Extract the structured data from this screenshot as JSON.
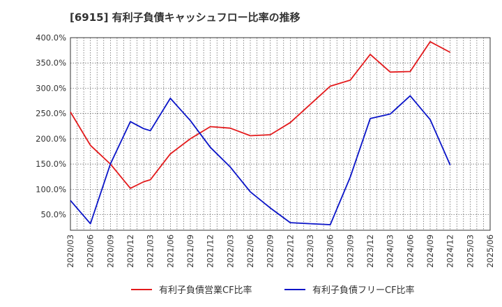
{
  "chart_data": {
    "type": "line",
    "title": "[6915]  有利子負債キャッシュフロー比率の推移",
    "categories": [
      "2020/03",
      "2020/06",
      "2020/09",
      "2020/12",
      "2021/03",
      "2021/06",
      "2021/09",
      "2021/12",
      "2022/03",
      "2022/06",
      "2022/09",
      "2022/12",
      "2023/03",
      "2023/06",
      "2023/09",
      "2023/12",
      "2024/03",
      "2024/06",
      "2024/09",
      "2024/12",
      "2025/03",
      "2025/06"
    ],
    "x": [
      "2020/03",
      "2020/04",
      "2020/05",
      "2020/06",
      "2020/07",
      "2020/08",
      "2020/09",
      "2020/10",
      "2020/11",
      "2020/12",
      "2021/01",
      "2021/02",
      "2021/03",
      "2021/04",
      "2021/05",
      "2021/06",
      "2021/07",
      "2021/08",
      "2021/09",
      "2021/10",
      "2021/11",
      "2021/12",
      "2022/01",
      "2022/02",
      "2022/03",
      "2022/04",
      "2022/05",
      "2022/06",
      "2022/07",
      "2022/08",
      "2022/09",
      "2022/10",
      "2022/11",
      "2022/12",
      "2023/01",
      "2023/02",
      "2023/03",
      "2023/04",
      "2023/05",
      "2023/06",
      "2023/07",
      "2023/08",
      "2023/09",
      "2023/10",
      "2023/11",
      "2023/12",
      "2024/01",
      "2024/02",
      "2024/03",
      "2024/04",
      "2024/05",
      "2024/06",
      "2024/07",
      "2024/08",
      "2024/09",
      "2024/10",
      "2024/11",
      "2024/12",
      "2025/01",
      "2025/02",
      "2025/03",
      "2025/04",
      "2025/05",
      "2025/06"
    ],
    "series": [
      {
        "name": "有利子負債営業CF比率",
        "color": "#e31a1c",
        "x": [
          "2020/03",
          "2020/06",
          "2020/09",
          "2020/12",
          "2021/02",
          "2021/03",
          "2021/06",
          "2021/09",
          "2021/12",
          "2022/03",
          "2022/06",
          "2022/09",
          "2022/12",
          "2023/03",
          "2023/06",
          "2023/09",
          "2023/12",
          "2024/03",
          "2024/06",
          "2024/09",
          "2024/12"
        ],
        "values": [
          253,
          187,
          150,
          102,
          115,
          119,
          170,
          200,
          224,
          221,
          206,
          208,
          232,
          268,
          304,
          316,
          367,
          332,
          333,
          392,
          371
        ]
      },
      {
        "name": "有利子負債フリーCF比率",
        "color": "#0a14c8",
        "x": [
          "2020/03",
          "2020/06",
          "2020/09",
          "2020/12",
          "2021/02",
          "2021/03",
          "2021/06",
          "2021/09",
          "2021/12",
          "2022/03",
          "2022/06",
          "2022/09",
          "2022/12",
          "2023/03",
          "2023/06",
          "2023/09",
          "2023/12",
          "2024/03",
          "2024/06",
          "2024/09",
          "2024/12"
        ],
        "values": [
          78,
          32,
          150,
          234,
          220,
          216,
          280,
          236,
          183,
          144,
          95,
          63,
          34,
          32,
          30,
          124,
          240,
          249,
          285,
          238,
          148
        ]
      }
    ],
    "y_ticks": [
      "50.0%",
      "100.0%",
      "150.0%",
      "200.0%",
      "250.0%",
      "300.0%",
      "350.0%",
      "400.0%"
    ],
    "y_tick_values": [
      50,
      100,
      150,
      200,
      250,
      300,
      350,
      400
    ],
    "ylim": [
      19,
      400
    ],
    "grid": true,
    "legend_position": "bottom"
  }
}
